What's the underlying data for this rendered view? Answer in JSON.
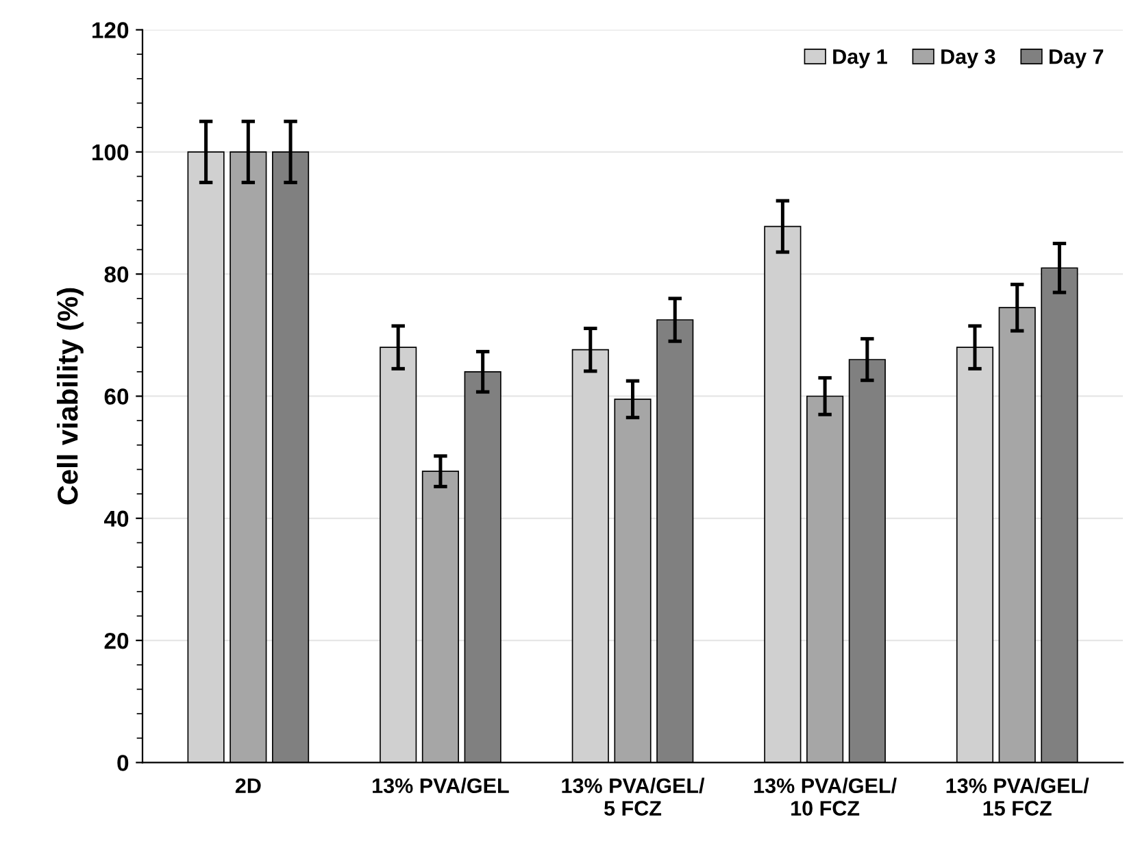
{
  "chart_data": {
    "type": "bar",
    "ylabel": "Cell viability (%)",
    "categories": [
      "2D",
      "13% PVA/GEL",
      "13% PVA/GEL/\n5 FCZ",
      "13% PVA/GEL/\n10 FCZ",
      "13% PVA/GEL/\n15 FCZ"
    ],
    "series": [
      {
        "name": "Day 1",
        "color": "#d0d0d0",
        "values": [
          100,
          68,
          67.6,
          87.8,
          68
        ],
        "errors": [
          5,
          3.5,
          3.5,
          4.2,
          3.5
        ]
      },
      {
        "name": "Day 3",
        "color": "#a6a6a6",
        "values": [
          100,
          47.7,
          59.5,
          60,
          74.5
        ],
        "errors": [
          5,
          2.5,
          3,
          3,
          3.8
        ]
      },
      {
        "name": "Day 7",
        "color": "#808080",
        "values": [
          100,
          64,
          72.5,
          66,
          81
        ],
        "errors": [
          5,
          3.3,
          3.5,
          3.4,
          4
        ]
      }
    ],
    "ylim": [
      0,
      120
    ],
    "yticks": [
      0,
      20,
      40,
      60,
      80,
      100,
      120
    ],
    "grid": "y",
    "legend": "top right"
  }
}
